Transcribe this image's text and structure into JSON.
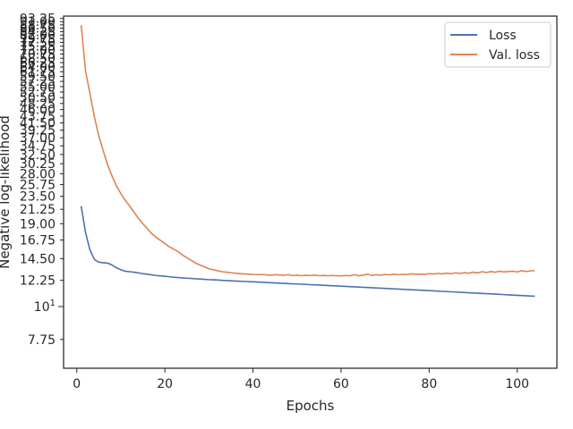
{
  "chart_data": {
    "type": "line",
    "title": "",
    "xlabel": "Epochs",
    "ylabel": "Negative log-likelihood",
    "xlim": [
      -3.0,
      109.0
    ],
    "ylim": [
      6.2,
      95.0
    ],
    "y_scale": "log",
    "x_ticks": [
      0,
      20,
      40,
      60,
      80,
      100
    ],
    "x_tick_labels": [
      "0",
      "20",
      "40",
      "60",
      "80",
      "100"
    ],
    "y_ticks": [
      7.75,
      10,
      12.25,
      14.5,
      16.75,
      19.0,
      21.25,
      23.5,
      25.75,
      28.0,
      30.25,
      32.5,
      34.75,
      37.0,
      39.25,
      41.5,
      43.75,
      46.0,
      48.25,
      50.5,
      52.75,
      55.0,
      57.25,
      59.5,
      61.75,
      64.0,
      66.25,
      68.5,
      70.75,
      73.0,
      75.25,
      77.5,
      79.75,
      82.0,
      84.25,
      86.5,
      88.75,
      91.0,
      93.25
    ],
    "y_tick_labels": [
      "7.75",
      "10^1",
      "12.25",
      "14.50",
      "16.75",
      "19.00",
      "21.25",
      "23.50",
      "25.75",
      "28.00",
      "30.25",
      "32.50",
      "34.75",
      "37.00",
      "39.25",
      "41.50",
      "43.75",
      "46.00",
      "48.25",
      "50.50",
      "52.75",
      "55.00",
      "57.25",
      "59.50",
      "61.75",
      "64.00",
      "66.25",
      "68.50",
      "70.75",
      "73.00",
      "75.25",
      "77.50",
      "79.75",
      "82.00",
      "84.25",
      "86.50",
      "88.75",
      "91.00",
      "93.25"
    ],
    "grid": false,
    "legend_position": "top-right",
    "x": [
      1,
      2,
      3,
      4,
      5,
      6,
      7,
      8,
      9,
      10,
      11,
      12,
      13,
      14,
      15,
      16,
      17,
      18,
      19,
      20,
      21,
      22,
      23,
      24,
      25,
      26,
      27,
      28,
      29,
      30,
      31,
      32,
      33,
      34,
      35,
      36,
      37,
      38,
      39,
      40,
      41,
      42,
      43,
      44,
      45,
      46,
      47,
      48,
      49,
      50,
      51,
      52,
      53,
      54,
      55,
      56,
      57,
      58,
      59,
      60,
      61,
      62,
      63,
      64,
      65,
      66,
      67,
      68,
      69,
      70,
      71,
      72,
      73,
      74,
      75,
      76,
      77,
      78,
      79,
      80,
      81,
      82,
      83,
      84,
      85,
      86,
      87,
      88,
      89,
      90,
      91,
      92,
      93,
      94,
      95,
      96,
      97,
      98,
      99,
      100,
      101,
      102,
      103,
      104
    ],
    "series": [
      {
        "name": "Loss",
        "color": "#4c72b0",
        "values": [
          21.8,
          17.7,
          15.5,
          14.4,
          14.1,
          14.05,
          14.0,
          13.8,
          13.5,
          13.3,
          13.15,
          13.1,
          13.05,
          12.98,
          12.9,
          12.85,
          12.78,
          12.72,
          12.68,
          12.65,
          12.6,
          12.55,
          12.52,
          12.49,
          12.46,
          12.43,
          12.4,
          12.38,
          12.35,
          12.32,
          12.3,
          12.28,
          12.25,
          12.23,
          12.21,
          12.19,
          12.17,
          12.15,
          12.13,
          12.11,
          12.09,
          12.07,
          12.05,
          12.03,
          12.01,
          11.99,
          11.97,
          11.95,
          11.93,
          11.91,
          11.89,
          11.87,
          11.85,
          11.83,
          11.81,
          11.79,
          11.77,
          11.75,
          11.73,
          11.71,
          11.69,
          11.67,
          11.65,
          11.63,
          11.61,
          11.59,
          11.57,
          11.55,
          11.53,
          11.51,
          11.49,
          11.47,
          11.45,
          11.43,
          11.41,
          11.39,
          11.37,
          11.35,
          11.33,
          11.31,
          11.29,
          11.27,
          11.25,
          11.23,
          11.21,
          11.19,
          11.17,
          11.15,
          11.13,
          11.11,
          11.09,
          11.07,
          11.05,
          11.03,
          11.01,
          10.99,
          10.97,
          10.95,
          10.93,
          10.91,
          10.89,
          10.87,
          10.85,
          10.83
        ]
      },
      {
        "name": "Val. loss",
        "color": "#dd8452",
        "values": [
          88.5,
          62.0,
          52.0,
          43.5,
          37.5,
          33.5,
          30.0,
          27.5,
          25.5,
          24.0,
          22.8,
          21.8,
          20.8,
          19.8,
          19.0,
          18.3,
          17.6,
          17.1,
          16.7,
          16.3,
          15.9,
          15.6,
          15.3,
          14.9,
          14.6,
          14.3,
          14.0,
          13.8,
          13.6,
          13.4,
          13.3,
          13.2,
          13.1,
          13.05,
          13.0,
          12.95,
          12.9,
          12.88,
          12.85,
          12.82,
          12.8,
          12.82,
          12.78,
          12.75,
          12.8,
          12.77,
          12.74,
          12.8,
          12.72,
          12.75,
          12.7,
          12.74,
          12.71,
          12.76,
          12.7,
          12.73,
          12.69,
          12.72,
          12.7,
          12.68,
          12.72,
          12.69,
          12.8,
          12.7,
          12.75,
          12.85,
          12.72,
          12.8,
          12.76,
          12.82,
          12.78,
          12.85,
          12.8,
          12.84,
          12.82,
          12.88,
          12.85,
          12.86,
          12.84,
          12.9,
          12.87,
          12.92,
          12.88,
          12.95,
          12.9,
          12.98,
          12.93,
          13.0,
          12.95,
          13.05,
          12.98,
          13.1,
          13.02,
          13.12,
          13.05,
          13.15,
          13.08,
          13.12,
          13.15,
          13.08,
          13.2,
          13.12,
          13.18,
          13.22
        ]
      }
    ]
  }
}
